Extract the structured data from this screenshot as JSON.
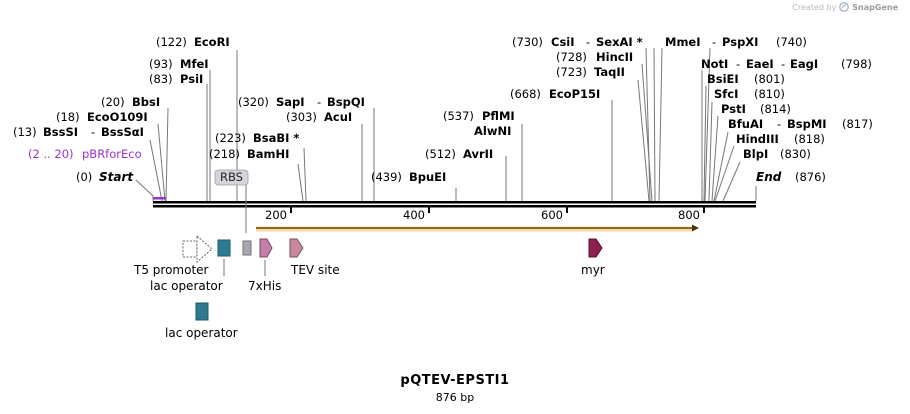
{
  "credit": {
    "prefix": "Created by",
    "brand": "SnapGene"
  },
  "map": {
    "name": "pQTEV-EPSTI1",
    "length_label": "876 bp",
    "length": 876
  },
  "ruler": {
    "ticks": [
      200,
      400,
      600,
      800
    ]
  },
  "ends": [
    {
      "pos": "(0)",
      "name": "Start"
    },
    {
      "pos": "(876)",
      "name": "End"
    }
  ],
  "sites_left": [
    {
      "pos": "(122)",
      "names": [
        "EcoRI"
      ]
    },
    {
      "pos": "(93)",
      "names": [
        "MfeI"
      ]
    },
    {
      "pos": "(83)",
      "names": [
        "PsiI"
      ]
    },
    {
      "pos": "(20)",
      "names": [
        "BbsI"
      ]
    },
    {
      "pos": "(18)",
      "names": [
        "EcoO109I"
      ]
    },
    {
      "pos": "(13)",
      "names": [
        "BssSI",
        "BssSαI"
      ]
    },
    {
      "pos": "(320)",
      "names": [
        "SapI",
        "BspQI"
      ]
    },
    {
      "pos": "(303)",
      "names": [
        "AcuI"
      ]
    },
    {
      "pos": "(223)",
      "names": [
        "BsaBI *"
      ]
    },
    {
      "pos": "(218)",
      "names": [
        "BamHI"
      ]
    },
    {
      "pos": "(439)",
      "names": [
        "BpuEI"
      ]
    },
    {
      "pos": "(537)",
      "names": [
        "PflMI"
      ]
    },
    {
      "pos": "",
      "names": [
        "AlwNI"
      ]
    },
    {
      "pos": "(512)",
      "names": [
        "AvrII"
      ]
    },
    {
      "pos": "(668)",
      "names": [
        "EcoP15I"
      ]
    },
    {
      "pos": "(730)",
      "names": [
        "CsiI",
        "SexAI *"
      ]
    },
    {
      "pos": "(728)",
      "names": [
        "HincII"
      ]
    },
    {
      "pos": "(723)",
      "names": [
        "TaqII"
      ]
    }
  ],
  "sites_right": [
    {
      "pos": "(740)",
      "names": [
        "MmeI",
        "PspXI"
      ]
    },
    {
      "pos": "(798)",
      "names": [
        "NotI",
        "EaeI",
        "EagI"
      ]
    },
    {
      "pos": "(801)",
      "names": [
        "BsiEI"
      ]
    },
    {
      "pos": "(810)",
      "names": [
        "SfcI"
      ]
    },
    {
      "pos": "(814)",
      "names": [
        "PstI"
      ]
    },
    {
      "pos": "(817)",
      "names": [
        "BfuAI",
        "BspMI"
      ]
    },
    {
      "pos": "(818)",
      "names": [
        "HindIII"
      ]
    },
    {
      "pos": "(830)",
      "names": [
        "BlpI"
      ]
    }
  ],
  "primer": {
    "pos": "(2 .. 20)",
    "name": "pBRforEco",
    "color": "#9933cc"
  },
  "rbs_label": "RBS",
  "features": {
    "t5": "T5 promoter",
    "lac1": "lac operator",
    "his": "7xHis",
    "tev": "TEV site",
    "myr": "myr",
    "lac2": "lac operator"
  },
  "colors": {
    "lac_operator": "#2e7b91",
    "his": "#c47fa6",
    "tev": "#c9889f",
    "myr": "#8c2150",
    "rbs": "#a6a9b1",
    "orf": "#e8a317"
  }
}
